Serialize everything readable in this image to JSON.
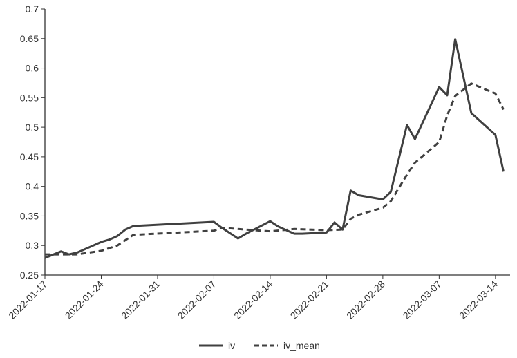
{
  "chart_data": {
    "type": "line",
    "title": "",
    "xlabel": "",
    "ylabel": "",
    "ylim": [
      0.25,
      0.7
    ],
    "yticks": [
      "0.25",
      "0.3",
      "0.35",
      "0.4",
      "0.45",
      "0.5",
      "0.55",
      "0.6",
      "0.65",
      "0.7"
    ],
    "xticks": [
      "2022-01-17",
      "2022-01-24",
      "2022-01-31",
      "2022-02-07",
      "2022-02-14",
      "2022-02-21",
      "2022-02-28",
      "2022-03-07",
      "2022-03-14"
    ],
    "grid": false,
    "legend": "bottom",
    "series": [
      {
        "name": "iv",
        "style": "solid",
        "color": "#404040",
        "points": [
          [
            "2022-01-17",
            0.279
          ],
          [
            "2022-01-19",
            0.29
          ],
          [
            "2022-01-20",
            0.285
          ],
          [
            "2022-01-21",
            0.288
          ],
          [
            "2022-01-24",
            0.306
          ],
          [
            "2022-01-25",
            0.31
          ],
          [
            "2022-01-26",
            0.316
          ],
          [
            "2022-01-27",
            0.327
          ],
          [
            "2022-01-28",
            0.333
          ],
          [
            "2022-02-07",
            0.34
          ],
          [
            "2022-02-08",
            0.33
          ],
          [
            "2022-02-10",
            0.312
          ],
          [
            "2022-02-11",
            0.32
          ],
          [
            "2022-02-14",
            0.341
          ],
          [
            "2022-02-15",
            0.332
          ],
          [
            "2022-02-16",
            0.326
          ],
          [
            "2022-02-17",
            0.32
          ],
          [
            "2022-02-18",
            0.32
          ],
          [
            "2022-02-21",
            0.322
          ],
          [
            "2022-02-22",
            0.339
          ],
          [
            "2022-02-23",
            0.327
          ],
          [
            "2022-02-24",
            0.393
          ],
          [
            "2022-02-25",
            0.385
          ],
          [
            "2022-02-28",
            0.378
          ],
          [
            "2022-03-01",
            0.391
          ],
          [
            "2022-03-03",
            0.504
          ],
          [
            "2022-03-04",
            0.48
          ],
          [
            "2022-03-07",
            0.568
          ],
          [
            "2022-03-08",
            0.554
          ],
          [
            "2022-03-09",
            0.649
          ],
          [
            "2022-03-11",
            0.524
          ],
          [
            "2022-03-14",
            0.487
          ],
          [
            "2022-03-15",
            0.425
          ]
        ]
      },
      {
        "name": "iv_mean",
        "style": "dashed",
        "color": "#404040",
        "points": [
          [
            "2022-01-17",
            0.285
          ],
          [
            "2022-01-21",
            0.285
          ],
          [
            "2022-01-24",
            0.291
          ],
          [
            "2022-01-26",
            0.3
          ],
          [
            "2022-01-28",
            0.318
          ],
          [
            "2022-02-07",
            0.325
          ],
          [
            "2022-02-08",
            0.33
          ],
          [
            "2022-02-10",
            0.328
          ],
          [
            "2022-02-14",
            0.324
          ],
          [
            "2022-02-17",
            0.328
          ],
          [
            "2022-02-21",
            0.326
          ],
          [
            "2022-02-23",
            0.327
          ],
          [
            "2022-02-24",
            0.345
          ],
          [
            "2022-02-25",
            0.352
          ],
          [
            "2022-02-28",
            0.364
          ],
          [
            "2022-03-01",
            0.375
          ],
          [
            "2022-03-03",
            0.42
          ],
          [
            "2022-03-04",
            0.44
          ],
          [
            "2022-03-07",
            0.475
          ],
          [
            "2022-03-08",
            0.52
          ],
          [
            "2022-03-09",
            0.553
          ],
          [
            "2022-03-11",
            0.574
          ],
          [
            "2022-03-14",
            0.557
          ],
          [
            "2022-03-15",
            0.53
          ]
        ]
      }
    ]
  }
}
